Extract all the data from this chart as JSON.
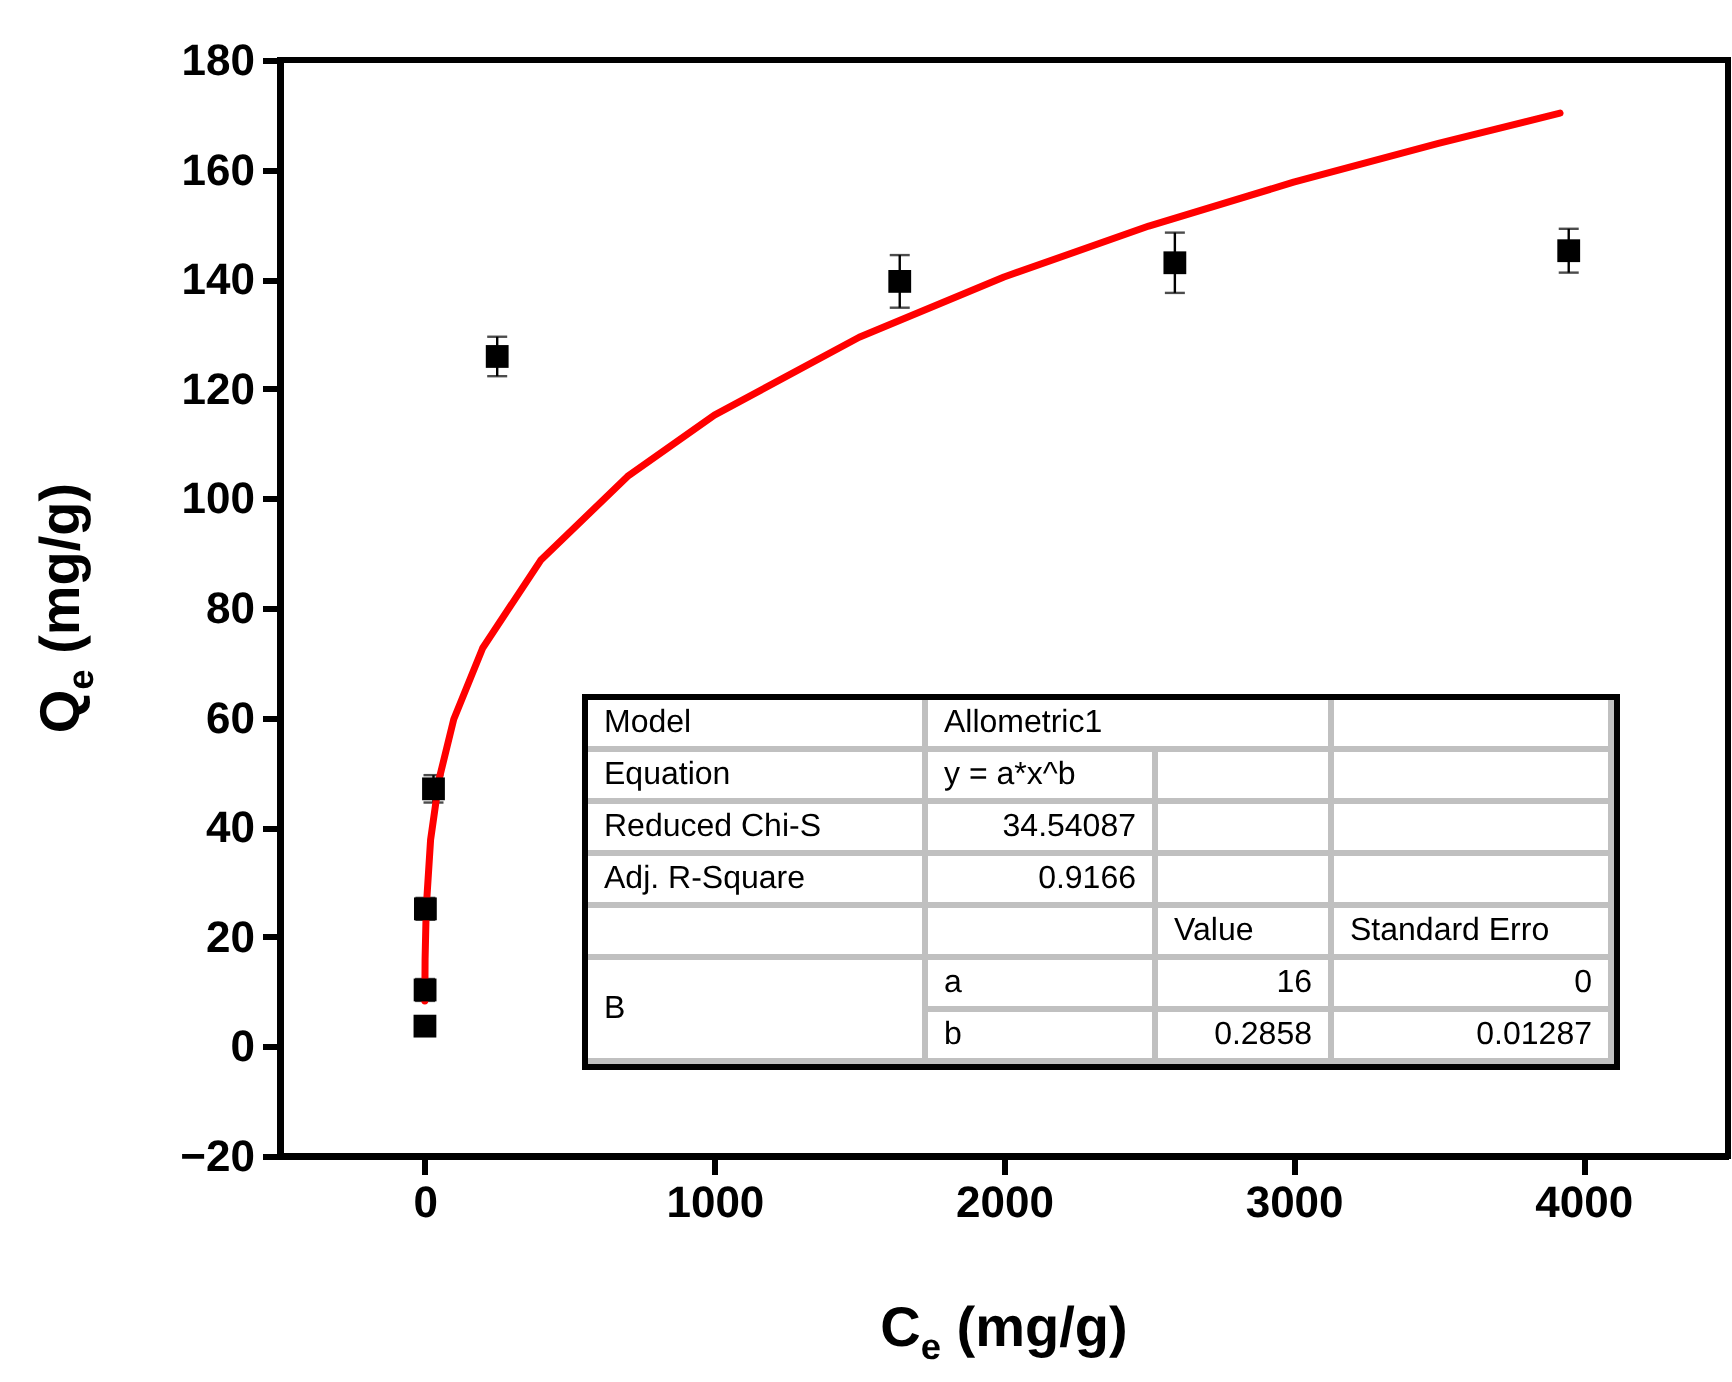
{
  "chart_data": {
    "type": "scatter",
    "xlabel": "C$_{e}$ (mg/g)",
    "ylabel": "Q$_{e}$ (mg/g)",
    "xlim": [
      -500,
      4500
    ],
    "ylim": [
      -20,
      180
    ],
    "xticks": [
      0,
      1000,
      2000,
      3000,
      4000
    ],
    "yticks": [
      -20,
      0,
      20,
      40,
      60,
      80,
      100,
      120,
      140,
      160,
      180
    ],
    "grid": false,
    "marker": "square",
    "series": [
      {
        "color": "#000000",
        "x": [
          0.5,
          1,
          2,
          30,
          250,
          1640,
          2590,
          3950
        ],
        "values": [
          3.7,
          10.3,
          25.1,
          47.0,
          125.9,
          139.6,
          143.0,
          145.2
        ],
        "errors": [
          1.5,
          2,
          2,
          2.5,
          3.6,
          4.8,
          5.5,
          4
        ]
      },
      {
        "type": "line",
        "marker": "none",
        "color": "#ff0000",
        "x": [
          0.1,
          1,
          5,
          20,
          50,
          100,
          200,
          400,
          700,
          1000,
          1500,
          2000,
          2500,
          3000,
          3500,
          3920
        ],
        "values": [
          8.3,
          16,
          25.3,
          37.7,
          48.9,
          59.7,
          72.7,
          88.7,
          104.0,
          115.2,
          129.4,
          140.4,
          149.7,
          157.7,
          164.8,
          170.3
        ]
      }
    ],
    "annotations": [
      "Model",
      "Allometric1",
      "Equation",
      "y = a*x^b",
      "Reduced Chi-S",
      "34.54087",
      "Adj. R-Square",
      "0.9166",
      "Value",
      "Standard Erro",
      "B",
      "a",
      "16",
      "0",
      "b",
      "0.2858",
      "0.01287"
    ]
  }
}
